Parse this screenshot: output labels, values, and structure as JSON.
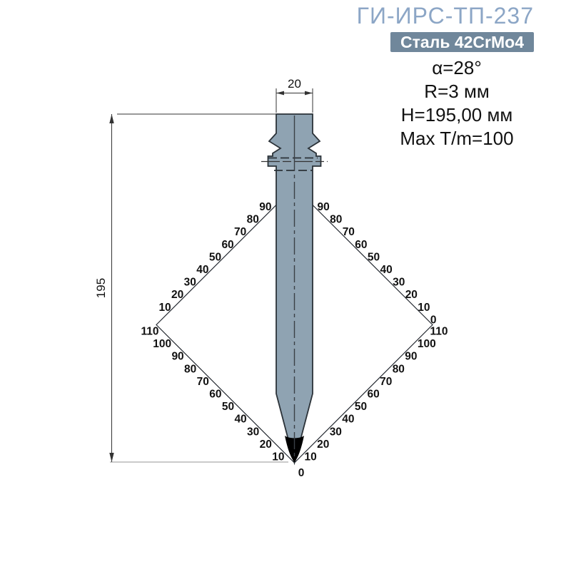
{
  "title": "ГИ-ИРС-ТП-237",
  "badge": "Сталь 42CrMo4",
  "specs": [
    "α=28°",
    "R=3 мм",
    "H=195,00 мм",
    "Max T/m=100"
  ],
  "drawing": {
    "dim_top_width": "20",
    "dim_left_height": "195",
    "tip_zero": "0",
    "scales": {
      "upper_left": [
        "90",
        "80",
        "70",
        "60",
        "50",
        "40",
        "30",
        "20",
        "10"
      ],
      "upper_right": [
        "90",
        "80",
        "70",
        "60",
        "50",
        "40",
        "30",
        "20",
        "10",
        "0"
      ],
      "lower_left": [
        "110",
        "100",
        "90",
        "80",
        "70",
        "60",
        "50",
        "40",
        "30",
        "20",
        "10"
      ],
      "lower_right": [
        "110",
        "100",
        "90",
        "80",
        "70",
        "60",
        "50",
        "40",
        "30",
        "20",
        "10"
      ]
    }
  },
  "colors": {
    "title": "#8CA6C6",
    "badge-bg": "#70879B",
    "badge-text": "#FFFFFF",
    "text": "#111111",
    "tool-fill": "#8FA3B2",
    "outline": "#2B3238",
    "grid": "#272C33",
    "dim": "#333333",
    "ext-gray": "#ABABAB"
  }
}
